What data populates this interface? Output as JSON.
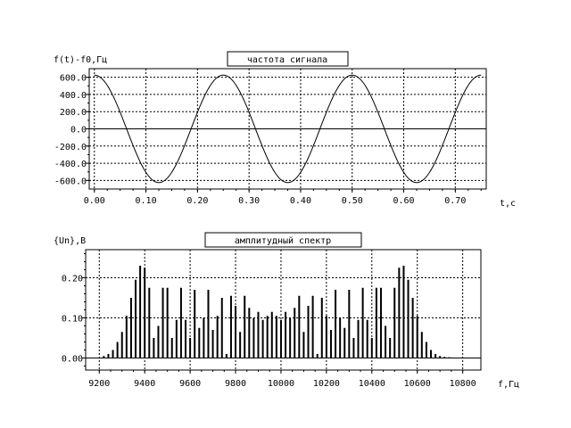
{
  "chart_data": [
    {
      "type": "line",
      "title": "частота сигнала",
      "ylabel": "f(t)-f0,Гц",
      "xlabel": "t,c",
      "xlim": [
        -0.01,
        0.76
      ],
      "ylim": [
        -700,
        700
      ],
      "xticks": [
        "0.00",
        "0.10",
        "0.20",
        "0.30",
        "0.40",
        "0.50",
        "0.60",
        "0.70"
      ],
      "yticks": [
        "600.0",
        "400.0",
        "200.0",
        "0.0",
        "-200.0",
        "-400.0",
        "-600.0"
      ],
      "grid": true,
      "series": [
        {
          "amplitude": 625,
          "period": 0.25,
          "t_start": 0.0,
          "t_end": 0.75,
          "waveform": "cosine"
        }
      ]
    },
    {
      "type": "bar",
      "title": "амплитудный спектр",
      "ylabel": "{Un},В",
      "xlabel": "f,Гц",
      "xlim": [
        9140,
        10880
      ],
      "ylim": [
        -0.03,
        0.27
      ],
      "xticks": [
        "9200",
        "9400",
        "9600",
        "9800",
        "10000",
        "10200",
        "10400",
        "10600",
        "10800"
      ],
      "yticks": [
        "0.20",
        "0.10",
        "0.00"
      ],
      "grid": true,
      "x": [
        9220,
        9240,
        9260,
        9280,
        9300,
        9320,
        9340,
        9360,
        9380,
        9400,
        9420,
        9440,
        9460,
        9480,
        9500,
        9520,
        9540,
        9560,
        9580,
        9600,
        9620,
        9640,
        9660,
        9680,
        9700,
        9720,
        9740,
        9760,
        9780,
        9800,
        9820,
        9840,
        9860,
        9880,
        9900,
        9920,
        9940,
        9960,
        9980,
        10000,
        10020,
        10040,
        10060,
        10080,
        10100,
        10120,
        10140,
        10160,
        10180,
        10200,
        10220,
        10240,
        10260,
        10280,
        10300,
        10320,
        10340,
        10360,
        10380,
        10400,
        10420,
        10440,
        10460,
        10480,
        10500,
        10520,
        10540,
        10560,
        10580,
        10600,
        10620,
        10640,
        10660,
        10680,
        10700,
        10720,
        10740,
        10760,
        10780
      ],
      "values": [
        0.005,
        0.01,
        0.02,
        0.04,
        0.065,
        0.105,
        0.15,
        0.195,
        0.23,
        0.225,
        0.175,
        0.05,
        0.08,
        0.175,
        0.175,
        0.05,
        0.095,
        0.175,
        0.095,
        0.05,
        0.17,
        0.075,
        0.1,
        0.17,
        0.07,
        0.105,
        0.15,
        0.01,
        0.155,
        0.13,
        0.065,
        0.155,
        0.125,
        0.1,
        0.115,
        0.095,
        0.105,
        0.115,
        0.105,
        0.095,
        0.115,
        0.1,
        0.125,
        0.155,
        0.065,
        0.13,
        0.155,
        0.01,
        0.15,
        0.105,
        0.07,
        0.17,
        0.1,
        0.075,
        0.17,
        0.05,
        0.095,
        0.175,
        0.095,
        0.05,
        0.175,
        0.175,
        0.08,
        0.05,
        0.175,
        0.225,
        0.23,
        0.195,
        0.15,
        0.105,
        0.065,
        0.04,
        0.02,
        0.01,
        0.005,
        0.003,
        0.002,
        0.001,
        0.001
      ]
    }
  ]
}
